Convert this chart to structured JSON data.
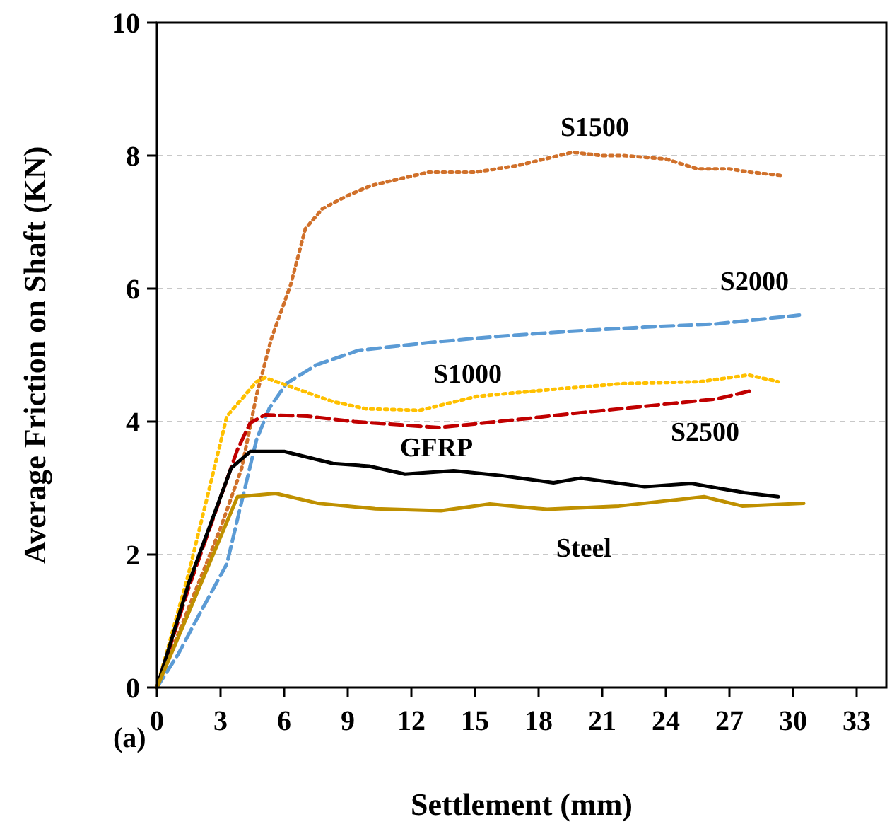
{
  "chart_data": {
    "type": "line",
    "xlabel": "Settlement (mm)",
    "ylabel": "Average Friction on Shaft (KN)",
    "xlim": [
      0,
      34.4
    ],
    "xticks": [
      0,
      3,
      6,
      9,
      12,
      15,
      18,
      21,
      24,
      27,
      30,
      33
    ],
    "ylim": [
      0,
      10
    ],
    "yticks": [
      0,
      2,
      4,
      6,
      8,
      10
    ],
    "grid": "y",
    "marker": "none",
    "series": [
      {
        "name": "S1500",
        "color": "#d0702a",
        "line_style": "dotted",
        "x": [
          0,
          1,
          2,
          3,
          4,
          4.7,
          5.4,
          6.3,
          7,
          7.8,
          9,
          10.1,
          12.8,
          15,
          17,
          19.6,
          21,
          22,
          24,
          25.5,
          27,
          28,
          29.5
        ],
        "values": [
          0,
          0.8,
          1.6,
          2.4,
          3.3,
          4.4,
          5.25,
          6.05,
          6.9,
          7.2,
          7.4,
          7.55,
          7.75,
          7.75,
          7.85,
          8.05,
          8.0,
          8.0,
          7.95,
          7.8,
          7.8,
          7.75,
          7.7
        ]
      },
      {
        "name": "S2000",
        "color": "#5b9bd5",
        "line_style": "dashed",
        "x": [
          0,
          1,
          2,
          3.3,
          4,
          4.7,
          5.3,
          6.1,
          7.5,
          9.5,
          12.9,
          16,
          19.6,
          23,
          26.4,
          30.3
        ],
        "values": [
          0,
          0.5,
          1.1,
          1.86,
          2.8,
          3.73,
          4.2,
          4.57,
          4.85,
          5.07,
          5.19,
          5.28,
          5.36,
          5.42,
          5.47,
          5.6
        ]
      },
      {
        "name": "S1000",
        "color": "#ffc000",
        "line_style": "dotted",
        "x": [
          0,
          1.5,
          3.3,
          4.7,
          5.1,
          8.3,
          9.9,
          12.4,
          15.1,
          18.5,
          21.9,
          25.6,
          27.9,
          29.3
        ],
        "values": [
          0,
          1.72,
          4.08,
          4.6,
          4.66,
          4.3,
          4.19,
          4.17,
          4.38,
          4.48,
          4.57,
          4.6,
          4.7,
          4.6
        ]
      },
      {
        "name": "S2500",
        "color": "#c00000",
        "line_style": "dashed",
        "x": [
          0,
          1.5,
          3.8,
          4.4,
          5.1,
          7.1,
          9.3,
          13.3,
          17.3,
          19.6,
          23,
          26.4,
          28.1
        ],
        "values": [
          0,
          1.5,
          3.58,
          3.98,
          4.1,
          4.08,
          4.0,
          3.91,
          4.04,
          4.12,
          4.23,
          4.34,
          4.47
        ]
      },
      {
        "name": "GFRP",
        "color": "#000000",
        "line_style": "solid",
        "x": [
          0,
          1.5,
          3.5,
          4.4,
          6,
          8.3,
          10,
          11.7,
          14,
          16.2,
          18.7,
          20,
          23,
          25.2,
          27.7,
          29.3
        ],
        "values": [
          0,
          1.57,
          3.3,
          3.55,
          3.55,
          3.37,
          3.33,
          3.21,
          3.26,
          3.19,
          3.08,
          3.15,
          3.02,
          3.07,
          2.93,
          2.87
        ]
      },
      {
        "name": "Steel",
        "color": "#bf9000",
        "line_style": "solid",
        "x": [
          0,
          1.7,
          3.8,
          5.6,
          7.6,
          10.3,
          13.4,
          15.7,
          18.4,
          21.8,
          25.8,
          27.6,
          30.5
        ],
        "values": [
          0,
          1.28,
          2.87,
          2.92,
          2.77,
          2.69,
          2.66,
          2.76,
          2.68,
          2.73,
          2.87,
          2.73,
          2.77
        ]
      }
    ],
    "annotations": [
      "(a)"
    ]
  }
}
